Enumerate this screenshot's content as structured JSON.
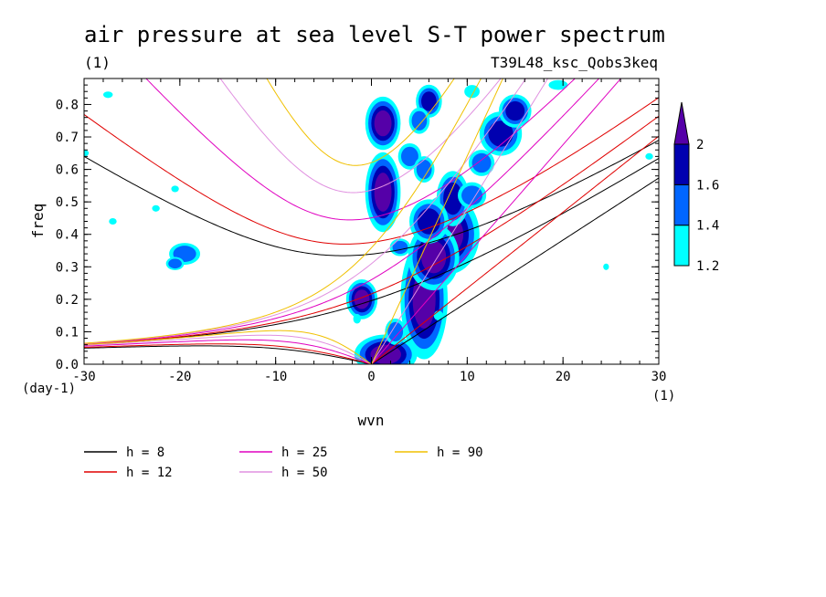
{
  "chart_data": {
    "type": "heatmap",
    "title": "air pressure at sea level S-T power spectrum",
    "subtitle_left": "(1)",
    "subtitle_right": "T39L48_ksc_Qobs3keq",
    "xlabel": "wvn",
    "ylabel": "freq",
    "x_unit": "(1)",
    "y_unit": "(day-1)",
    "xlim": [
      -30,
      30
    ],
    "ylim": [
      0,
      0.88
    ],
    "x_ticks": [
      -30,
      -20,
      -10,
      0,
      10,
      20,
      30
    ],
    "x_tick_labels": [
      "-30",
      "-20",
      "-10",
      "0",
      "10",
      "20",
      "30"
    ],
    "y_ticks": [
      0,
      0.1,
      0.2,
      0.3,
      0.4,
      0.5,
      0.6,
      0.7,
      0.8
    ],
    "y_tick_labels": [
      "0.0",
      "0.1",
      "0.2",
      "0.3",
      "0.4",
      "0.5",
      "0.6",
      "0.7",
      "0.8"
    ],
    "colorbar": {
      "levels": [
        1.2,
        1.4,
        1.6,
        2
      ],
      "level_labels": [
        "1.2",
        "1.4",
        "1.6",
        "2"
      ],
      "colors": [
        "#00ffff",
        "#0066ff",
        "#0000b0",
        "#5500a8"
      ]
    },
    "dispersion_curves": [
      {
        "name": "h =  8",
        "h": 8,
        "color": "#000000"
      },
      {
        "name": "h = 12",
        "h": 12,
        "color": "#e00000"
      },
      {
        "name": "h = 25",
        "h": 25,
        "color": "#e000c0"
      },
      {
        "name": "h = 50",
        "h": 50,
        "color": "#e090e0"
      },
      {
        "name": "h = 90",
        "h": 90,
        "color": "#f0c000"
      }
    ],
    "heatmap_blobs": [
      {
        "x": 1.2,
        "y": 0.742,
        "rx": 0.9,
        "ry": 0.04,
        "level": 3
      },
      {
        "x": -1.0,
        "y": 0.2,
        "rx": 0.8,
        "ry": 0.03,
        "level": 3
      },
      {
        "x": 1.2,
        "y": 0.53,
        "rx": 0.9,
        "ry": 0.06,
        "level": 3
      },
      {
        "x": 1.5,
        "y": 0.03,
        "rx": 1.6,
        "ry": 0.03,
        "level": 3
      },
      {
        "x": 8.0,
        "y": 0.4,
        "rx": 1.6,
        "ry": 0.06,
        "level": 3
      },
      {
        "x": 5.5,
        "y": 0.2,
        "rx": 1.2,
        "ry": 0.09,
        "level": 3
      },
      {
        "x": 6.5,
        "y": 0.33,
        "rx": 1.3,
        "ry": 0.05,
        "level": 3
      },
      {
        "x": 8.5,
        "y": 0.51,
        "rx": 1.0,
        "ry": 0.05,
        "level": 2
      },
      {
        "x": 6.0,
        "y": 0.44,
        "rx": 1.2,
        "ry": 0.04,
        "level": 2
      },
      {
        "x": 13.5,
        "y": 0.71,
        "rx": 1.3,
        "ry": 0.04,
        "level": 2
      },
      {
        "x": 15.0,
        "y": 0.78,
        "rx": 1.0,
        "ry": 0.03,
        "level": 2
      },
      {
        "x": 6.0,
        "y": 0.81,
        "rx": 0.8,
        "ry": 0.03,
        "level": 2
      },
      {
        "x": 3.0,
        "y": 0.36,
        "rx": 0.8,
        "ry": 0.02,
        "level": 1
      },
      {
        "x": 4.0,
        "y": 0.64,
        "rx": 0.9,
        "ry": 0.03,
        "level": 1
      },
      {
        "x": 5.5,
        "y": 0.6,
        "rx": 0.8,
        "ry": 0.03,
        "level": 1
      },
      {
        "x": 10.5,
        "y": 0.52,
        "rx": 1.1,
        "ry": 0.03,
        "level": 1
      },
      {
        "x": 11.5,
        "y": 0.62,
        "rx": 1.0,
        "ry": 0.03,
        "level": 1
      },
      {
        "x": 2.5,
        "y": 0.1,
        "rx": 0.8,
        "ry": 0.03,
        "level": 1
      },
      {
        "x": 5.0,
        "y": 0.75,
        "rx": 0.8,
        "ry": 0.03,
        "level": 1
      },
      {
        "x": -19.5,
        "y": 0.34,
        "rx": 1.2,
        "ry": 0.025,
        "level": 1
      },
      {
        "x": -20.5,
        "y": 0.31,
        "rx": 0.7,
        "ry": 0.015,
        "level": 1
      },
      {
        "x": -27.5,
        "y": 0.83,
        "rx": 0.5,
        "ry": 0.01,
        "level": 0
      },
      {
        "x": -30,
        "y": 0.65,
        "rx": 0.5,
        "ry": 0.01,
        "level": 0
      },
      {
        "x": -27,
        "y": 0.44,
        "rx": 0.4,
        "ry": 0.01,
        "level": 0
      },
      {
        "x": -20.5,
        "y": 0.54,
        "rx": 0.4,
        "ry": 0.01,
        "level": 0
      },
      {
        "x": -22.5,
        "y": 0.48,
        "rx": 0.4,
        "ry": 0.01,
        "level": 0
      },
      {
        "x": 10.5,
        "y": 0.84,
        "rx": 0.8,
        "ry": 0.02,
        "level": 0
      },
      {
        "x": 19.5,
        "y": 0.86,
        "rx": 1.0,
        "ry": 0.015,
        "level": 0
      },
      {
        "x": 29,
        "y": 0.64,
        "rx": 0.4,
        "ry": 0.01,
        "level": 0
      },
      {
        "x": 24.5,
        "y": 0.3,
        "rx": 0.3,
        "ry": 0.01,
        "level": 0
      },
      {
        "x": -1.5,
        "y": 0.14,
        "rx": 0.4,
        "ry": 0.015,
        "level": 0
      },
      {
        "x": 7.0,
        "y": 0.15,
        "rx": 0.5,
        "ry": 0.015,
        "level": 0
      }
    ]
  }
}
